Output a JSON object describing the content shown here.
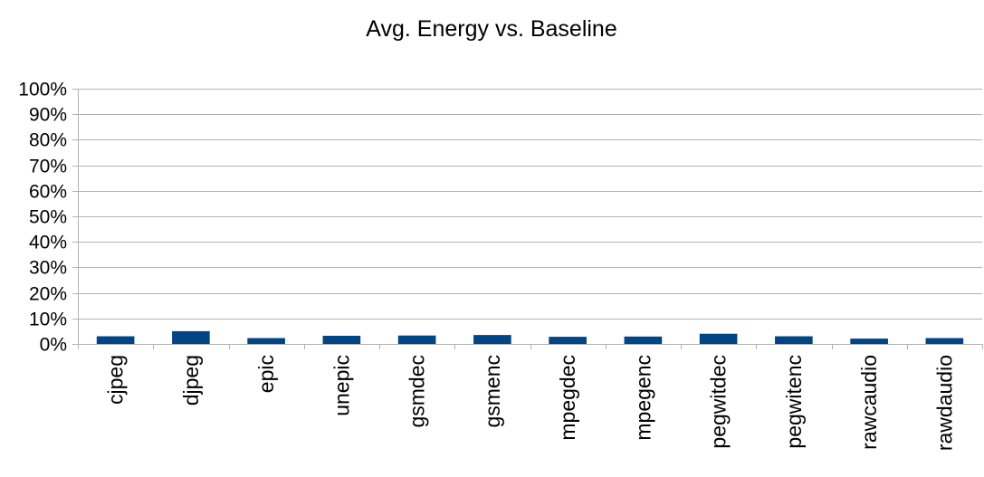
{
  "chart_data": {
    "type": "bar",
    "title": "Avg. Energy vs. Baseline",
    "xlabel": "",
    "ylabel": "",
    "categories": [
      "cjpeg",
      "djpeg",
      "epic",
      "unepic",
      "gsmdec",
      "gsmenc",
      "mpegdec",
      "mpegenc",
      "pegwitdec",
      "pegwitenc",
      "rawcaudio",
      "rawdaudio"
    ],
    "values": [
      3.0,
      5.0,
      2.3,
      3.2,
      3.3,
      3.5,
      2.8,
      2.9,
      4.0,
      3.0,
      2.1,
      2.3
    ],
    "ylim": [
      0,
      100
    ],
    "y_ticks": [
      "0%",
      "10%",
      "20%",
      "30%",
      "40%",
      "50%",
      "60%",
      "70%",
      "80%",
      "90%",
      "100%"
    ],
    "y_tick_values": [
      0,
      10,
      20,
      30,
      40,
      50,
      60,
      70,
      80,
      90,
      100
    ],
    "grid": true,
    "legend": "none",
    "bar_color": "#004586",
    "grid_color": "#b3b3b3"
  }
}
